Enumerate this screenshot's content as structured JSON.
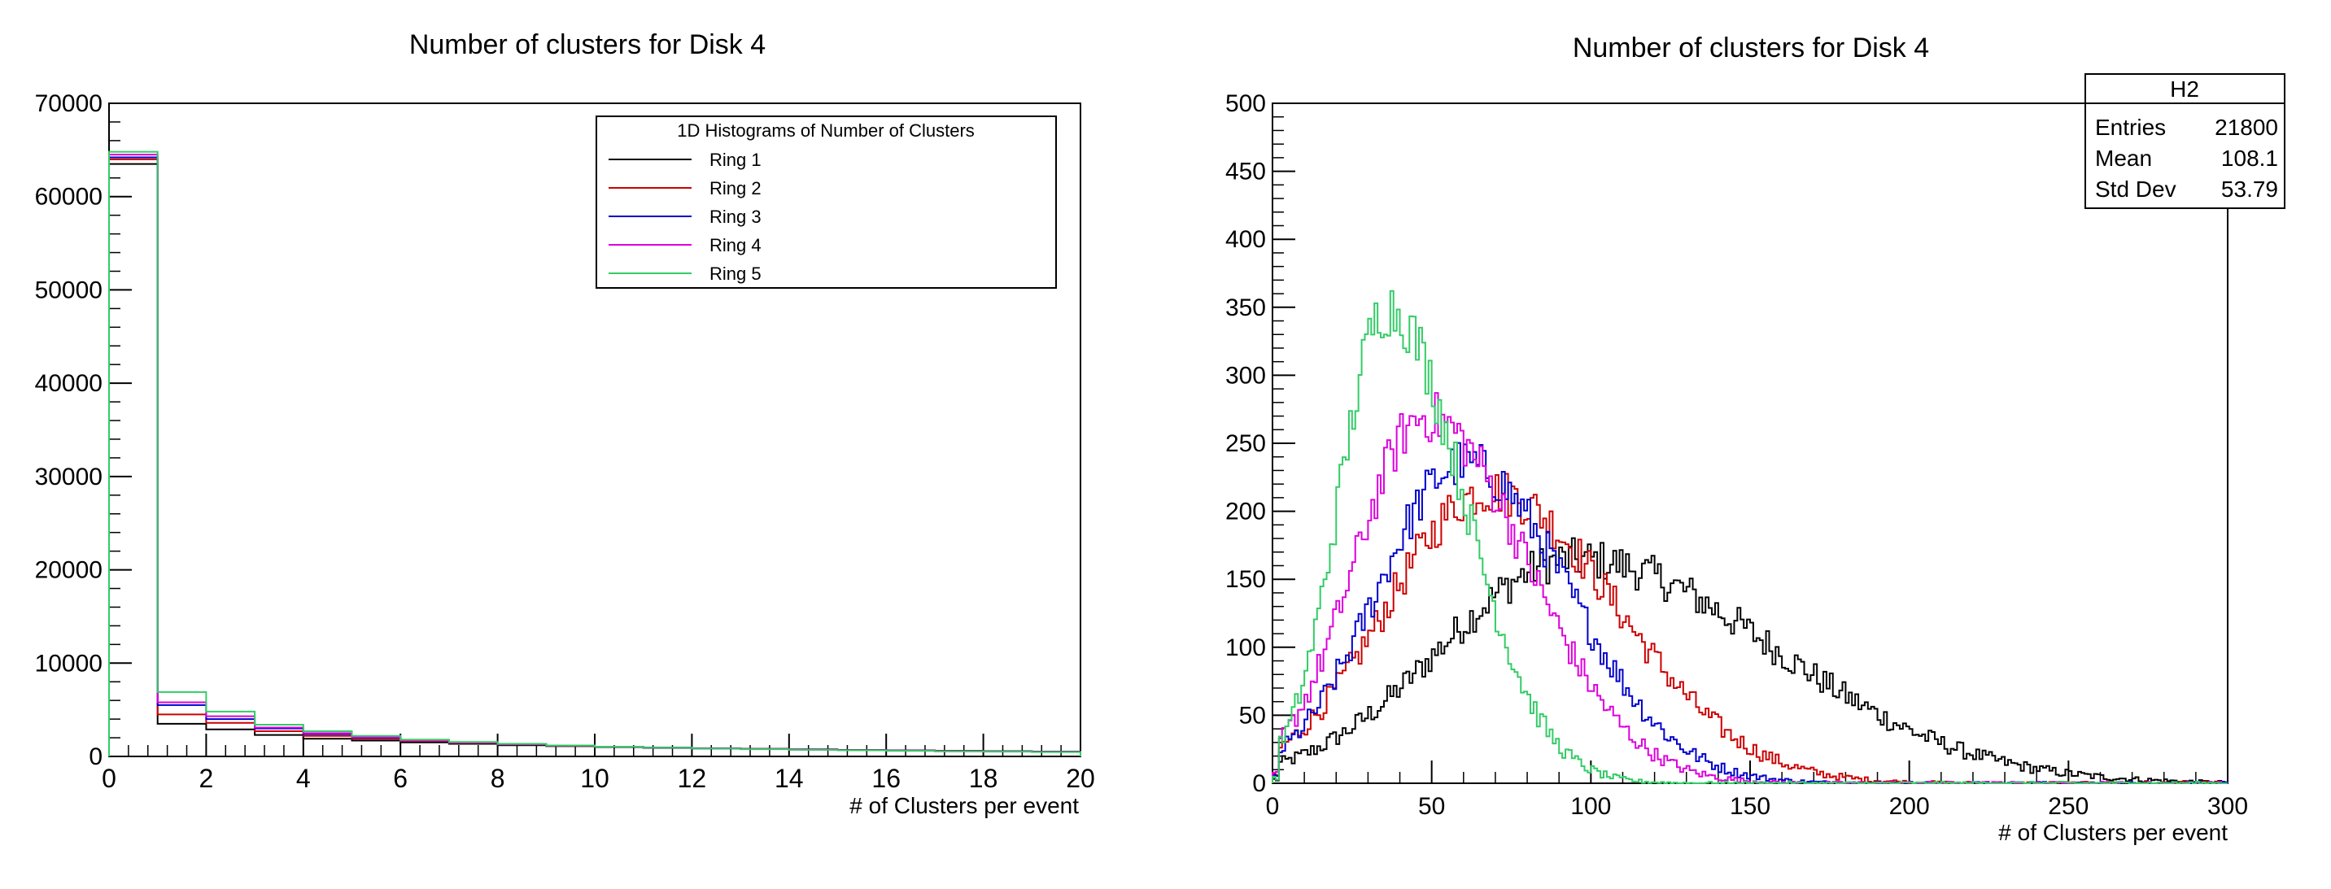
{
  "chart_data": [
    {
      "type": "histogram",
      "title": "Number of clusters for Disk 4",
      "xlabel": "# of Clusters per event",
      "ylabel": "",
      "xlim": [
        0,
        20
      ],
      "ylim": [
        0,
        70000
      ],
      "xticks": [
        0,
        2,
        4,
        6,
        8,
        10,
        12,
        14,
        16,
        18,
        20
      ],
      "yticks": [
        0,
        10000,
        20000,
        30000,
        40000,
        50000,
        60000,
        70000
      ],
      "grid": false,
      "legend": {
        "placement": "top-right",
        "title": "1D Histograms of Number of Clusters"
      },
      "bin_edges": [
        0,
        1,
        2,
        3,
        4,
        5,
        6,
        7,
        8,
        9,
        10,
        11,
        12,
        13,
        14,
        15,
        16,
        17,
        18,
        19,
        20
      ],
      "series": [
        {
          "name": "Ring 1",
          "color": "#000000",
          "values": [
            63500,
            3500,
            2900,
            2300,
            1900,
            1700,
            1500,
            1350,
            1200,
            1100,
            1000,
            900,
            850,
            800,
            750,
            700,
            650,
            600,
            560,
            520
          ]
        },
        {
          "name": "Ring 2",
          "color": "#cc0000",
          "values": [
            64000,
            4500,
            3600,
            2700,
            2200,
            1900,
            1650,
            1450,
            1300,
            1150,
            1050,
            950,
            880,
            820,
            760,
            700,
            650,
            600,
            560,
            520
          ]
        },
        {
          "name": "Ring 3",
          "color": "#0000cc",
          "values": [
            64200,
            5500,
            4000,
            3000,
            2400,
            2000,
            1700,
            1500,
            1330,
            1180,
            1050,
            950,
            870,
            800,
            740,
            680,
            630,
            580,
            540,
            500
          ]
        },
        {
          "name": "Ring 4",
          "color": "#dd00dd",
          "values": [
            64500,
            5800,
            4300,
            3100,
            2500,
            2050,
            1700,
            1480,
            1300,
            1150,
            1030,
            930,
            850,
            780,
            720,
            660,
            610,
            560,
            520,
            480
          ]
        },
        {
          "name": "Ring 5",
          "color": "#33cc66",
          "values": [
            64800,
            6900,
            4800,
            3400,
            2700,
            2200,
            1800,
            1550,
            1350,
            1180,
            1050,
            940,
            850,
            770,
            710,
            650,
            600,
            550,
            510,
            470
          ]
        }
      ]
    },
    {
      "type": "histogram",
      "title": "Number of clusters for Disk 4",
      "xlabel": "# of Clusters per event",
      "ylabel": "",
      "xlim": [
        0,
        300
      ],
      "ylim": [
        0,
        500
      ],
      "xticks": [
        0,
        50,
        100,
        150,
        200,
        250,
        300
      ],
      "yticks": [
        0,
        50,
        100,
        150,
        200,
        250,
        300,
        350,
        400,
        450,
        500
      ],
      "grid": false,
      "bin_width": 1,
      "stats_box": {
        "name": "H2",
        "rows": [
          {
            "label": "Entries",
            "value": "21800"
          },
          {
            "label": "Mean",
            "value": "108.1"
          },
          {
            "label": "Std Dev",
            "value": "53.79"
          }
        ]
      },
      "series": [
        {
          "color": "#000000",
          "peak_x": 95,
          "peak_y": 165,
          "sigma_left": 42,
          "sigma_right": 62,
          "tail_end": 300
        },
        {
          "color": "#cc0000",
          "peak_x": 68,
          "peak_y": 215,
          "sigma_left": 32,
          "sigma_right": 40,
          "tail_end": 270
        },
        {
          "color": "#0000cc",
          "peak_x": 60,
          "peak_y": 235,
          "sigma_left": 27,
          "sigma_right": 33,
          "tail_end": 250
        },
        {
          "color": "#dd00dd",
          "peak_x": 48,
          "peak_y": 270,
          "sigma_left": 22,
          "sigma_right": 32,
          "tail_end": 230
        },
        {
          "color": "#33cc66",
          "peak_x": 36,
          "peak_y": 350,
          "sigma_left": 15,
          "sigma_right": 24,
          "tail_end": 175
        }
      ]
    }
  ]
}
